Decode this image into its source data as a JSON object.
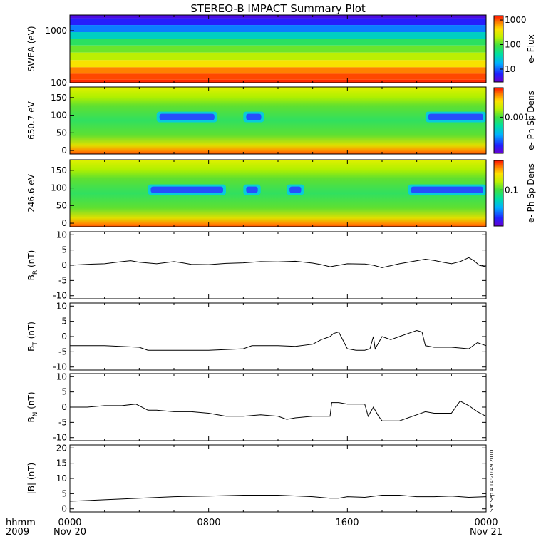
{
  "title": "STEREO-B IMPACT Summary Plot",
  "footer": {
    "left_line1": "hhmm",
    "left_line2": "2009",
    "x_ticks": [
      "0000",
      "0800",
      "1600",
      "0000"
    ],
    "x_dates": [
      "Nov 20",
      "Nov 21"
    ]
  },
  "timestamp": "Sat Sep  4 14:20:49 2010",
  "chart_data": [
    {
      "type": "heatmap",
      "name": "swea",
      "ylabel": "SWEA (eV)",
      "yscale": "log",
      "ylim": [
        100,
        2000
      ],
      "yticks": [
        {
          "v": 100,
          "label": "100"
        },
        {
          "v": 1000,
          "label": "1000"
        }
      ],
      "colorbar": {
        "label": "e- Flux",
        "scale": "log",
        "ticks": [
          {
            "v": 10,
            "label": "10"
          },
          {
            "v": 100,
            "label": "100"
          },
          {
            "v": 1000,
            "label": "1000"
          }
        ],
        "range": [
          3,
          1500
        ]
      },
      "bands": [
        {
          "energy": 2000,
          "flux": 4
        },
        {
          "energy": 1500,
          "flux": 6
        },
        {
          "energy": 1100,
          "flux": 12
        },
        {
          "energy": 800,
          "flux": 30
        },
        {
          "energy": 600,
          "flux": 70
        },
        {
          "energy": 450,
          "flux": 120
        },
        {
          "energy": 320,
          "flux": 200
        },
        {
          "energy": 230,
          "flux": 400
        },
        {
          "energy": 170,
          "flux": 800
        },
        {
          "energy": 130,
          "flux": 1100
        },
        {
          "energy": 100,
          "flux": 1300
        }
      ]
    },
    {
      "type": "heatmap",
      "name": "pad650",
      "ylabel": "650.7 eV",
      "ylim": [
        -10,
        180
      ],
      "yticks": [
        0,
        50,
        100,
        150
      ],
      "colorbar": {
        "label": "e- Ph Sp Dens",
        "ticks": [
          {
            "frac": 0.55,
            "label": "0.001"
          }
        ]
      },
      "depletion_intervals_hours": [
        [
          5.0,
          8.5
        ],
        [
          10.0,
          11.2
        ],
        [
          20.5,
          24.0
        ]
      ],
      "depletion_pitch_deg": [
        80,
        110
      ]
    },
    {
      "type": "heatmap",
      "name": "pad246",
      "ylabel": "246.6 eV",
      "ylim": [
        -10,
        180
      ],
      "yticks": [
        0,
        50,
        100,
        150
      ],
      "colorbar": {
        "label": "e- Ph Sp Dens",
        "ticks": [
          {
            "frac": 0.55,
            "label": "0.1"
          }
        ]
      },
      "depletion_intervals_hours": [
        [
          4.5,
          9.0
        ],
        [
          10.0,
          11.0
        ],
        [
          12.5,
          13.5
        ],
        [
          19.5,
          24.0
        ]
      ],
      "depletion_pitch_deg": [
        80,
        110
      ]
    },
    {
      "type": "line",
      "name": "br",
      "ylabel_main": "B",
      "ylabel_sub": "R",
      "ylabel_unit": " (nT)",
      "ylim": [
        -11,
        11
      ],
      "yticks": [
        -10,
        -5,
        0,
        5,
        10
      ],
      "x_hours": [
        0,
        1,
        2,
        3,
        3.5,
        4,
        5,
        6,
        6.5,
        7,
        8,
        9,
        10,
        11,
        12,
        13,
        14,
        14.5,
        15,
        16,
        17,
        17.5,
        18,
        19,
        20,
        20.5,
        21,
        21.5,
        22,
        22.5,
        23,
        23.3,
        23.6,
        24
      ],
      "values": [
        0,
        0.3,
        0.5,
        1.2,
        1.5,
        1,
        0.5,
        1.2,
        0.8,
        0.3,
        0.2,
        0.6,
        0.8,
        1.2,
        1.1,
        1.3,
        0.7,
        0.2,
        -0.5,
        0.5,
        0.4,
        0,
        -0.8,
        0.5,
        1.5,
        2,
        1.6,
        1,
        0.5,
        1.2,
        2.5,
        1.5,
        0,
        -0.5
      ]
    },
    {
      "type": "line",
      "name": "bt",
      "ylabel_main": "B",
      "ylabel_sub": "T",
      "ylabel_unit": " (nT)",
      "ylim": [
        -11,
        11
      ],
      "yticks": [
        -10,
        -5,
        0,
        5,
        10
      ],
      "x_hours": [
        0,
        2,
        4,
        4.5,
        6,
        8,
        10,
        10.5,
        12,
        13,
        14,
        14.5,
        15,
        15.2,
        15.5,
        16,
        16.5,
        17,
        17.3,
        17.5,
        17.6,
        18,
        18.5,
        19,
        19.5,
        20,
        20.3,
        20.5,
        21,
        22,
        23,
        23.5,
        24
      ],
      "values": [
        -3,
        -3,
        -3.5,
        -4.5,
        -4.5,
        -4.5,
        -4,
        -3,
        -3,
        -3.2,
        -2.5,
        -1,
        0,
        1,
        1.5,
        -4,
        -4.5,
        -4.5,
        -4,
        0,
        -4,
        0,
        -1,
        0,
        1,
        2,
        1.5,
        -3,
        -3.5,
        -3.5,
        -4,
        -2,
        -3
      ]
    },
    {
      "type": "line",
      "name": "bn",
      "ylabel_main": "B",
      "ylabel_sub": "N",
      "ylabel_unit": " (nT)",
      "ylim": [
        -11,
        11
      ],
      "yticks": [
        -10,
        -5,
        0,
        5,
        10
      ],
      "x_hours": [
        0,
        1,
        2,
        3,
        3.8,
        4.5,
        5,
        6,
        7,
        8,
        9,
        10,
        11,
        12,
        12.5,
        13,
        14,
        15,
        15.1,
        15.5,
        16,
        17,
        17.2,
        17.5,
        17.8,
        18,
        19,
        20,
        20.5,
        21,
        22,
        22.5,
        23,
        23.5,
        24
      ],
      "values": [
        0,
        0,
        0.5,
        0.5,
        1,
        -1,
        -1,
        -1.5,
        -1.5,
        -2,
        -3,
        -3,
        -2.5,
        -3,
        -4,
        -3.5,
        -3,
        -3,
        1.5,
        1.5,
        1,
        1,
        -3,
        0,
        -3,
        -4.5,
        -4.5,
        -2.5,
        -1.5,
        -2,
        -2,
        2,
        0.5,
        -1.5,
        -3
      ]
    },
    {
      "type": "line",
      "name": "bmag",
      "ylabel_main": "|B| (nT)",
      "ylim": [
        -1,
        21
      ],
      "yticks": [
        0,
        5,
        10,
        15,
        20
      ],
      "x_hours": [
        0,
        2,
        4,
        6,
        8,
        10,
        12,
        14,
        15,
        15.5,
        16,
        17,
        18,
        19,
        20,
        21,
        22,
        23,
        24
      ],
      "values": [
        2.5,
        3,
        3.5,
        4,
        4.2,
        4.5,
        4.5,
        4,
        3.5,
        3.5,
        4,
        3.8,
        4.5,
        4.5,
        4,
        4,
        4.2,
        3.8,
        4
      ]
    }
  ]
}
